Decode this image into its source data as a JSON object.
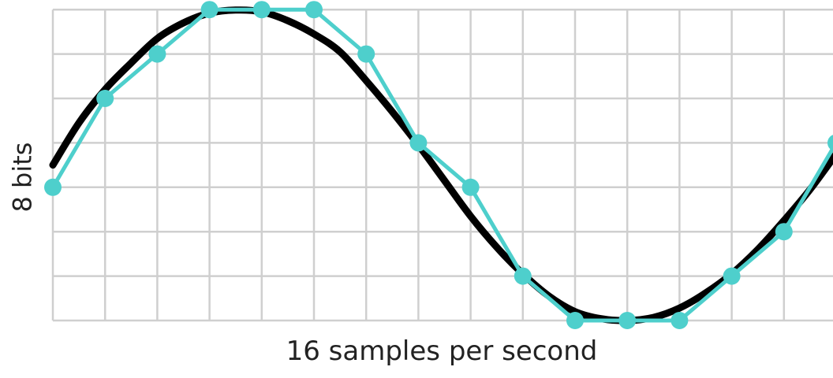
{
  "chart_data": {
    "type": "line",
    "xlabel": "16 samples per second",
    "ylabel": "8 bits",
    "grid": true,
    "xlim": [
      0,
      15
    ],
    "ylim": [
      0,
      7
    ],
    "colors": {
      "analog": "#000000",
      "sampled": "#4ecfcc",
      "grid": "#cfcfcf"
    },
    "series": [
      {
        "style": "smooth-curve",
        "x": [
          0,
          0.5,
          1,
          1.5,
          2,
          2.5,
          3,
          3.5,
          4,
          4.5,
          5,
          5.5,
          6,
          6.5,
          7,
          7.5,
          8,
          8.5,
          9,
          9.5,
          10,
          10.5,
          11,
          11.5,
          12,
          12.5,
          13,
          13.5,
          14,
          14.5,
          15
        ],
        "values": [
          3.5,
          4.45,
          5.2,
          5.8,
          6.35,
          6.7,
          6.92,
          6.99,
          6.95,
          6.75,
          6.45,
          6.05,
          5.4,
          4.7,
          3.95,
          3.15,
          2.35,
          1.65,
          1.05,
          0.55,
          0.2,
          0.04,
          0.0,
          0.07,
          0.28,
          0.62,
          1.05,
          1.6,
          2.25,
          2.95,
          3.75
        ]
      },
      {
        "style": "sampled-points",
        "x": [
          0,
          1,
          2,
          3,
          4,
          5,
          6,
          7,
          8,
          9,
          10,
          11,
          12,
          13,
          14,
          15
        ],
        "values": [
          3,
          5,
          6,
          7,
          7,
          7,
          6,
          4,
          3,
          1,
          0,
          0,
          0,
          1,
          2,
          4
        ]
      }
    ]
  }
}
